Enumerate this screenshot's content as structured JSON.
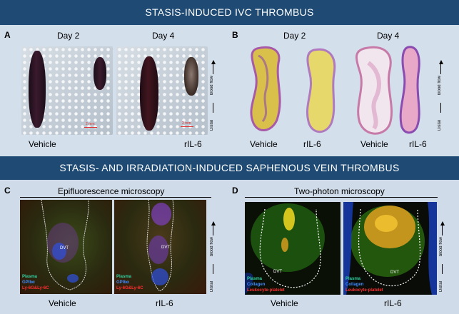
{
  "header_top": "STASIS-INDUCED IVC THROMBUS",
  "header_bottom": "STASIS- AND IRRADIATION-INDUCED SAPHENOUS VEIN THROMBUS",
  "panels": {
    "A": {
      "letter": "A",
      "day2": "Day 2",
      "day4": "Day 4",
      "vehicle": "Vehicle",
      "ril6": "rIL-6",
      "scale1": "2 mm",
      "scale2": "2 mm",
      "flow_label": "blood flow",
      "distal": "Distal"
    },
    "B": {
      "letter": "B",
      "day2": "Day 2",
      "day4": "Day 4",
      "vehicle1": "Vehicle",
      "ril6_1": "rIL-6",
      "vehicle2": "Vehicle",
      "ril6_2": "rIL-6",
      "flow_label": "blood flow",
      "distal": "Distal"
    },
    "C": {
      "letter": "C",
      "title": "Epifluorescence microscopy",
      "vehicle": "Vehicle",
      "ril6": "rIL-6",
      "dvt1": "DVT",
      "dvt2": "DVT",
      "legend": [
        "Plasma",
        "GPIbα",
        "Ly-6G&Ly-6C"
      ],
      "legend_colors": [
        "#2fd0a0",
        "#3f8cff",
        "#ff3030"
      ],
      "flow_label": "blood flow",
      "distal": "Distal"
    },
    "D": {
      "letter": "D",
      "title": "Two-photon microscopy",
      "vehicle": "Vehicle",
      "ril6": "rIL-6",
      "dvt1": "DVT",
      "dvt2": "DVT",
      "legend": [
        "Plasma",
        "Collagen",
        "Leukocyte-platelet"
      ],
      "legend_colors": [
        "#2fd0a0",
        "#3f8cff",
        "#ff3030"
      ],
      "flow_label": "blood flow",
      "distal": "Distal"
    }
  }
}
